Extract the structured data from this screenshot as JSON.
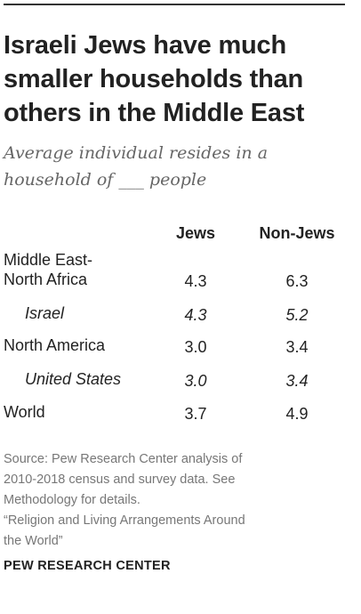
{
  "chart_data": {
    "type": "table",
    "title": "Israeli Jews have much smaller households than others in the Middle East",
    "subtitle_lines": [
      "Average individual resides in a",
      "household of ___ people"
    ],
    "columns": [
      "Jews",
      "Non-Jews"
    ],
    "rows": [
      {
        "label_lines": [
          "Middle East-",
          "North Africa"
        ],
        "values": [
          "4.3",
          "6.3"
        ],
        "indent": false
      },
      {
        "label_lines": [
          "Israel"
        ],
        "values": [
          "4.3",
          "5.2"
        ],
        "indent": true
      },
      {
        "label_lines": [
          "North America"
        ],
        "values": [
          "3.0",
          "3.4"
        ],
        "indent": false
      },
      {
        "label_lines": [
          "United States"
        ],
        "values": [
          "3.0",
          "3.4"
        ],
        "indent": true
      },
      {
        "label_lines": [
          "World"
        ],
        "values": [
          "3.7",
          "4.9"
        ],
        "indent": false
      }
    ]
  },
  "footer": {
    "source_lines": [
      "Source: Pew Research Center analysis of",
      "2010-2018 census and survey data. See",
      "Methodology for details.",
      "“Religion and Living Arrangements Around",
      "the World”"
    ],
    "org": "PEW RESEARCH CENTER"
  }
}
